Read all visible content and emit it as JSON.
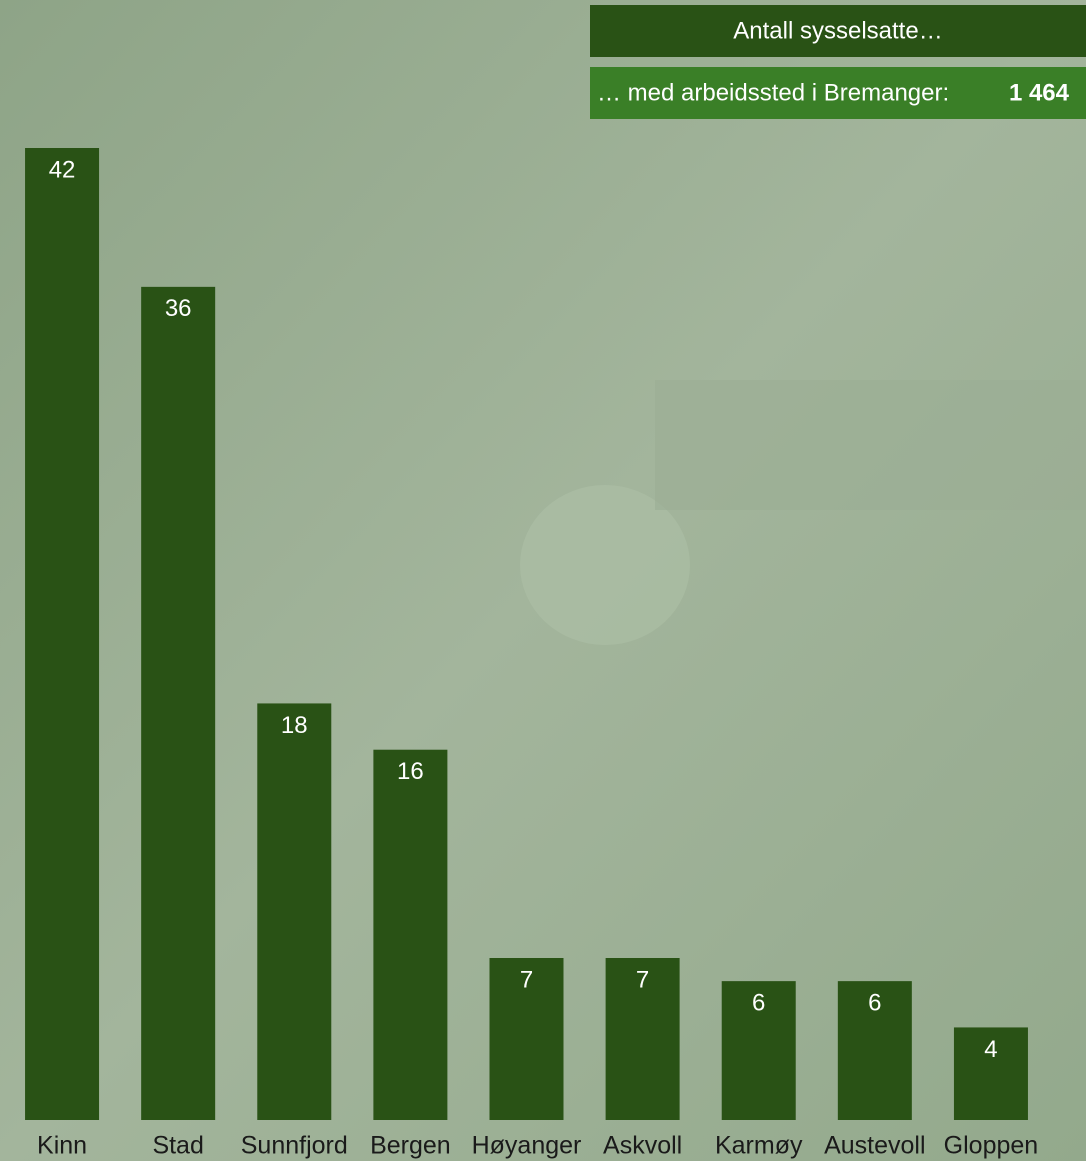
{
  "chart_data": {
    "type": "bar",
    "title": "Antall sysselsatte…",
    "subtitle": "… med arbeidssted i Bremanger:",
    "total": 1464,
    "total_label": "1 464",
    "categories": [
      "Kinn",
      "Stad",
      "Sunnfjord",
      "Bergen",
      "Høyanger",
      "Askvoll",
      "Karmøy",
      "Austevoll",
      "Gloppen"
    ],
    "values": [
      42,
      36,
      18,
      16,
      7,
      7,
      6,
      6,
      4
    ],
    "color": "#295215"
  }
}
